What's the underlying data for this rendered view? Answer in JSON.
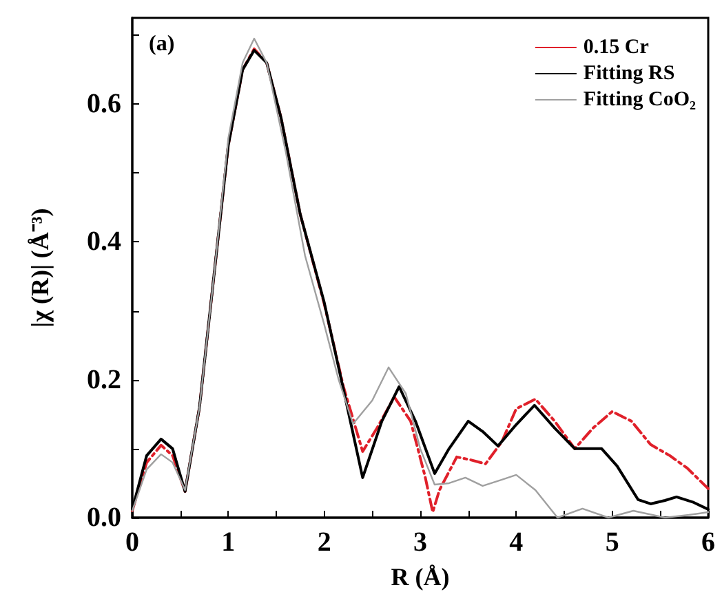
{
  "chart_data": {
    "type": "line",
    "xlabel": "R (Å)",
    "ylabel": "|χ (R)| (Å⁻³)",
    "annotations": [
      "(a)"
    ],
    "xlim": [
      0,
      6
    ],
    "xticks": [
      0,
      {
        "value": 0.5,
        "label": null
      },
      1,
      {
        "value": 1.5,
        "label": null
      },
      2,
      {
        "value": 2.5,
        "label": null
      },
      3,
      {
        "value": 3.5,
        "label": null
      },
      4,
      {
        "value": 4.5,
        "label": null
      },
      5,
      {
        "value": 5.5,
        "label": null
      },
      6
    ],
    "ylim": [
      0,
      0.725
    ],
    "yticks": [
      {
        "value": 0,
        "label": "0.0"
      },
      {
        "value": 0.1,
        "label": null
      },
      0.2,
      {
        "value": 0.3,
        "label": null
      },
      0.4,
      {
        "value": 0.5,
        "label": null
      },
      0.6,
      {
        "value": 0.7,
        "label": null
      }
    ],
    "legend": "top right",
    "grid": false,
    "marker": "none",
    "series": [
      {
        "name": "0.15 Cr",
        "color": "#e0202a",
        "line_style": "dashed",
        "x": [
          0,
          0.15,
          0.3,
          0.42,
          0.55,
          0.7,
          0.85,
          1.0,
          1.15,
          1.27,
          1.4,
          1.55,
          1.75,
          2.0,
          2.2,
          2.4,
          2.55,
          2.73,
          2.9,
          3.05,
          3.13,
          3.2,
          3.38,
          3.52,
          3.68,
          3.85,
          4.0,
          4.2,
          4.4,
          4.61,
          4.8,
          5.0,
          5.2,
          5.4,
          5.6,
          5.78,
          6.0
        ],
        "values": [
          0.01,
          0.08,
          0.105,
          0.09,
          0.038,
          0.16,
          0.35,
          0.54,
          0.65,
          0.68,
          0.66,
          0.58,
          0.44,
          0.31,
          0.19,
          0.096,
          0.13,
          0.175,
          0.14,
          0.06,
          0.008,
          0.04,
          0.088,
          0.084,
          0.078,
          0.11,
          0.158,
          0.172,
          0.14,
          0.1,
          0.13,
          0.154,
          0.14,
          0.106,
          0.09,
          0.072,
          0.042
        ]
      },
      {
        "name": "Fitting RS",
        "color": "#000000",
        "line_style": "solid",
        "x": [
          0,
          0.15,
          0.3,
          0.42,
          0.55,
          0.7,
          0.85,
          1.0,
          1.15,
          1.27,
          1.4,
          1.55,
          1.75,
          2.0,
          2.2,
          2.4,
          2.6,
          2.78,
          2.95,
          3.15,
          3.3,
          3.5,
          3.65,
          3.81,
          4.0,
          4.19,
          4.4,
          4.61,
          4.89,
          5.05,
          5.27,
          5.4,
          5.55,
          5.67,
          5.85,
          6.0
        ],
        "values": [
          0.012,
          0.09,
          0.114,
          0.1,
          0.038,
          0.16,
          0.35,
          0.54,
          0.65,
          0.678,
          0.66,
          0.58,
          0.44,
          0.312,
          0.186,
          0.058,
          0.14,
          0.19,
          0.14,
          0.064,
          0.1,
          0.14,
          0.125,
          0.104,
          0.135,
          0.163,
          0.13,
          0.1,
          0.1,
          0.075,
          0.026,
          0.02,
          0.025,
          0.03,
          0.022,
          0.012
        ]
      },
      {
        "name": "Fitting CoO₂",
        "color": "#a0a0a0",
        "line_style": "solid",
        "x": [
          0,
          0.15,
          0.3,
          0.42,
          0.55,
          0.7,
          0.85,
          1.0,
          1.15,
          1.27,
          1.4,
          1.6,
          1.8,
          2.0,
          2.15,
          2.3,
          2.5,
          2.67,
          2.85,
          3.0,
          3.15,
          3.3,
          3.47,
          3.65,
          3.85,
          4.0,
          4.2,
          4.43,
          4.69,
          4.96,
          5.22,
          5.55,
          5.8,
          6.0
        ],
        "values": [
          0.01,
          0.07,
          0.092,
          0.08,
          0.04,
          0.16,
          0.35,
          0.55,
          0.66,
          0.695,
          0.66,
          0.53,
          0.38,
          0.28,
          0.2,
          0.136,
          0.17,
          0.218,
          0.18,
          0.1,
          0.048,
          0.05,
          0.058,
          0.046,
          0.055,
          0.062,
          0.04,
          0.0,
          0.013,
          0.0,
          0.01,
          0.0,
          0.004,
          0.008
        ]
      }
    ]
  }
}
